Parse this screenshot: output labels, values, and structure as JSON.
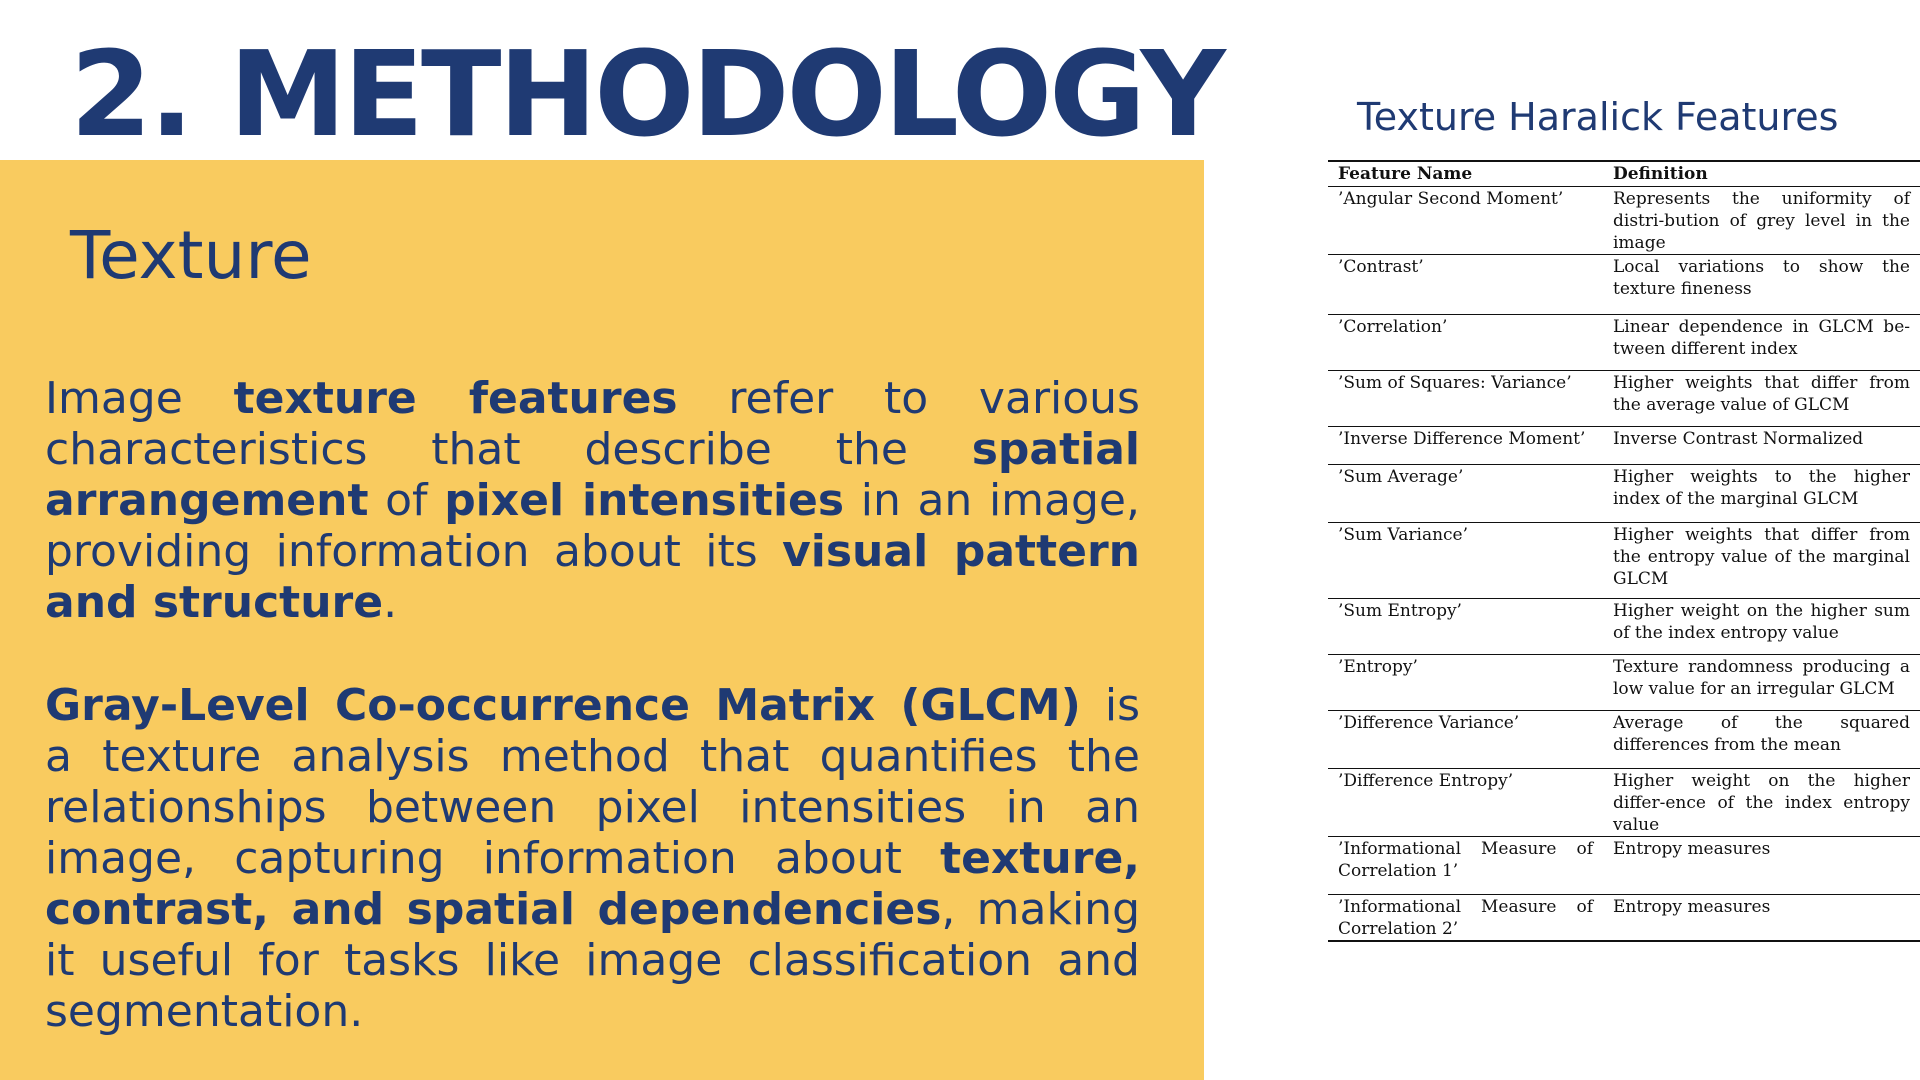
{
  "title": "2. METHODOLOGY",
  "section": {
    "subtitle": "Texture",
    "paragraph1": [
      {
        "text": "Image ",
        "bold": false
      },
      {
        "text": "texture features",
        "bold": true
      },
      {
        "text": " refer to various characteristics that describe the ",
        "bold": false
      },
      {
        "text": "spatial arrangement",
        "bold": true
      },
      {
        "text": " of ",
        "bold": false
      },
      {
        "text": "pixel intensities",
        "bold": true
      },
      {
        "text": " in an image, providing information about its ",
        "bold": false
      },
      {
        "text": "visual pattern and structure",
        "bold": true
      },
      {
        "text": ".",
        "bold": false
      }
    ],
    "paragraph2": [
      {
        "text": "Gray-Level Co-occurrence Matrix (GLCM)",
        "bold": true
      },
      {
        "text": " is a texture analysis method that quantifies the relationships between pixel intensities in an image, capturing information about ",
        "bold": false
      },
      {
        "text": "texture, contrast, and spatial dependencies",
        "bold": true
      },
      {
        "text": ", making it useful for tasks like image classification and segmentation.",
        "bold": false
      }
    ]
  },
  "table": {
    "title": "Texture Haralick Features",
    "headers": [
      "Feature Name",
      "Definition"
    ],
    "rows": [
      {
        "name": "’Angular Second Moment’",
        "definition": "Represents the uniformity of distri-bution of grey level in the image"
      },
      {
        "name": "’Contrast’",
        "definition": "Local variations to show the texture fineness"
      },
      {
        "name": "’Correlation’",
        "definition": "Linear dependence in GLCM be-tween different index"
      },
      {
        "name": "’Sum of Squares: Variance’",
        "definition": "Higher weights that differ from the average value of GLCM"
      },
      {
        "name": "’Inverse Difference Moment’",
        "definition": "Inverse Contrast Normalized"
      },
      {
        "name": "’Sum Average’",
        "definition": "Higher weights to the higher index of the marginal GLCM"
      },
      {
        "name": "’Sum Variance’",
        "definition": "Higher weights that differ from the entropy value of the marginal GLCM"
      },
      {
        "name": "’Sum Entropy’",
        "definition": "Higher weight on the higher sum of the index entropy value"
      },
      {
        "name": "’Entropy’",
        "definition": "Texture randomness producing a low value for an irregular GLCM"
      },
      {
        "name": "’Difference Variance’",
        "definition": "Average of the squared differences from the mean"
      },
      {
        "name": "’Difference Entropy’",
        "definition": "Higher weight on the higher differ-ence of the index entropy value"
      },
      {
        "name": "’Informational Measure of Correlation 1’",
        "definition": "Entropy measures"
      },
      {
        "name": "’Informational Measure of Correlation 2’",
        "definition": "Entropy measures"
      }
    ]
  },
  "colors": {
    "title": "#1f3a73",
    "panel": "#f9cb5f"
  }
}
